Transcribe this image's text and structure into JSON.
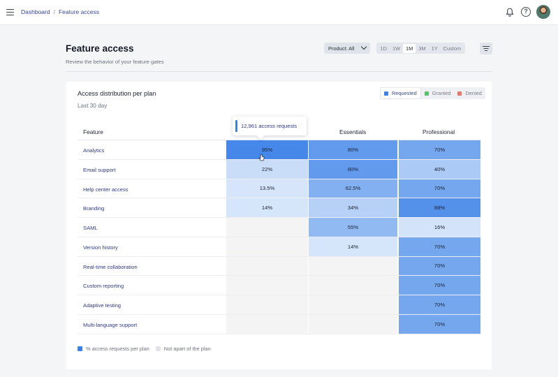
{
  "nav": {
    "breadcrumb": [
      "Dashboard",
      "Feature access"
    ],
    "breadcrumb_separator": "/",
    "icons": [
      "menu-icon",
      "bell-icon",
      "help-icon"
    ],
    "help_glyph": "?"
  },
  "page": {
    "title": "Feature access",
    "subtitle": "Review the behavior of your feature gates"
  },
  "toolbar": {
    "product_filter": "Product: All",
    "ranges": [
      "1D",
      "1W",
      "1M",
      "3M",
      "1Y",
      "Custom"
    ],
    "active_range": "1M",
    "filter_icon": "filter-icon"
  },
  "card": {
    "title": "Access distribution per plan",
    "subtitle": "Last 30 day",
    "legend": [
      {
        "label": "Requested",
        "color": "#3b82e8",
        "active": true
      },
      {
        "label": "Granted",
        "color": "#5cbf6d",
        "active": false
      },
      {
        "label": "Denied",
        "color": "#e8776b",
        "active": false
      }
    ],
    "tooltip": "12,961 access requests",
    "footer_legend": [
      {
        "label": "% access requests per plan",
        "color": "#3b82e8"
      },
      {
        "label": "Not apart of the plan",
        "color": "#e3e3e6"
      }
    ]
  },
  "table": {
    "feature_header": "Feature",
    "plan_headers": [
      "",
      "Essentials",
      "Professional"
    ],
    "rows": [
      {
        "feature": "Analytics",
        "values": [
          "95%",
          "80%",
          "70%"
        ]
      },
      {
        "feature": "Email support",
        "values": [
          "22%",
          "80%",
          "40%"
        ]
      },
      {
        "feature": "Help center access",
        "values": [
          "13.5%",
          "62.5%",
          "70%"
        ]
      },
      {
        "feature": "Branding",
        "values": [
          "14%",
          "34%",
          "88%"
        ]
      },
      {
        "feature": "SAML",
        "values": [
          null,
          "55%",
          "16%"
        ]
      },
      {
        "feature": "Version history",
        "values": [
          null,
          "14%",
          "70%"
        ]
      },
      {
        "feature": "Real-time collaboration",
        "values": [
          null,
          null,
          "70%"
        ]
      },
      {
        "feature": "Custom reporting",
        "values": [
          null,
          null,
          "70%"
        ]
      },
      {
        "feature": "Adaptive testing",
        "values": [
          null,
          null,
          "70%"
        ]
      },
      {
        "feature": "Multi-language support",
        "values": [
          null,
          null,
          "70%"
        ]
      }
    ],
    "colors": {
      "accent": "#3b82e8",
      "not_in_plan": "#f4f4f5"
    }
  }
}
